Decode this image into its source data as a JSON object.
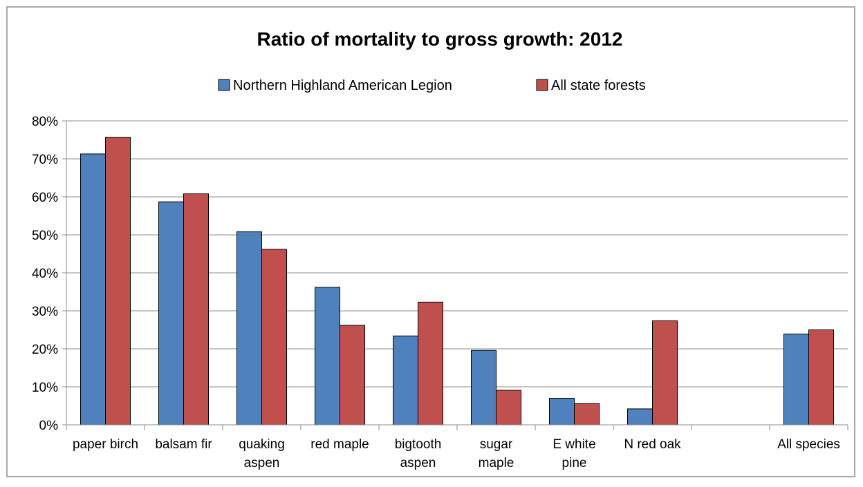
{
  "chart_data": {
    "type": "bar",
    "title": "Ratio of mortality to gross growth:  2012",
    "xlabel": "",
    "ylabel": "",
    "categories": [
      "paper birch",
      "balsam fir",
      "quaking aspen",
      "red maple",
      "bigtooth aspen",
      "sugar maple",
      "E white pine",
      "N red oak",
      "",
      "All species"
    ],
    "category_lines": [
      [
        "paper birch"
      ],
      [
        "balsam fir"
      ],
      [
        "quaking",
        "aspen"
      ],
      [
        "red maple"
      ],
      [
        "bigtooth",
        "aspen"
      ],
      [
        "sugar",
        "maple"
      ],
      [
        "E white",
        "pine"
      ],
      [
        "N red oak"
      ],
      [],
      [
        "All species"
      ]
    ],
    "series": [
      {
        "name": "Northern Highland American Legion",
        "color": "#4f81bd",
        "values": [
          71.3,
          58.7,
          50.8,
          36.2,
          23.4,
          19.6,
          7.0,
          4.2,
          null,
          23.9
        ]
      },
      {
        "name": "All state forests",
        "color": "#c0504d",
        "values": [
          75.7,
          60.8,
          46.2,
          26.2,
          32.3,
          9.1,
          5.6,
          27.4,
          null,
          25.0
        ]
      }
    ],
    "ylim": [
      0,
      80
    ],
    "yticks": [
      0,
      10,
      20,
      30,
      40,
      50,
      60,
      70,
      80
    ],
    "ytick_labels": [
      "0%",
      "10%",
      "20%",
      "30%",
      "40%",
      "50%",
      "60%",
      "70%",
      "80%"
    ],
    "grid": true,
    "legend_position": "top"
  }
}
